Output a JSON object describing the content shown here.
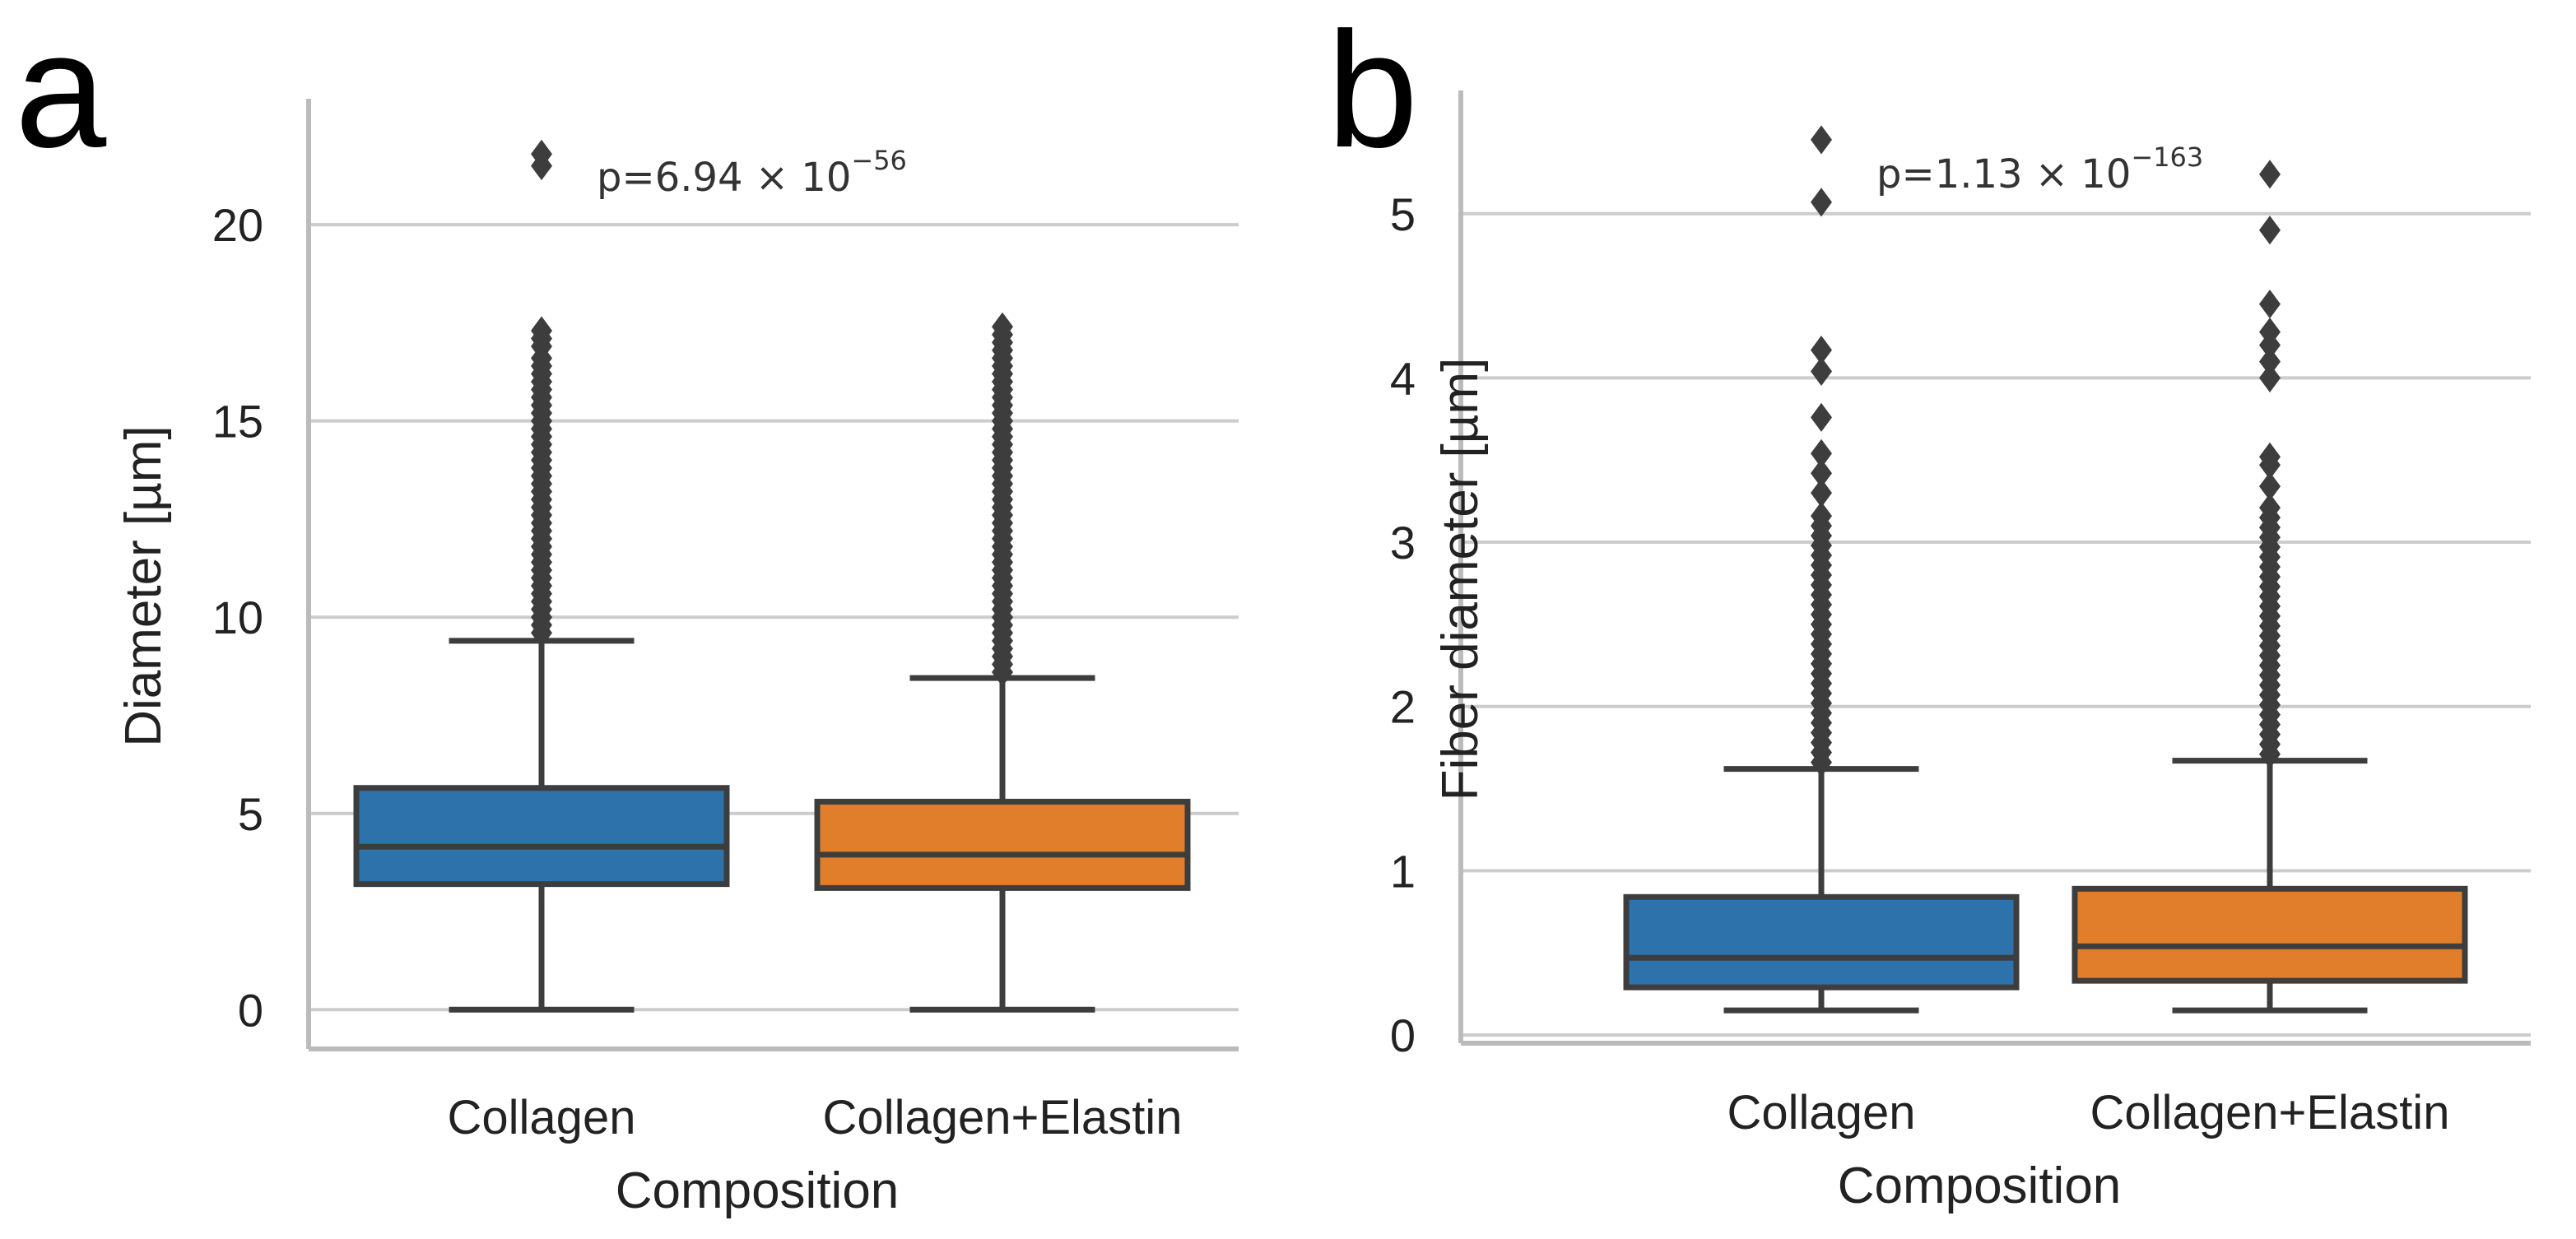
{
  "colors": {
    "collagen": "#2E72AC",
    "collagen_elastin": "#E07E2B",
    "line": "#3d3d3d",
    "grid": "#cccccc",
    "axis": "#bbbbbb"
  },
  "chart_data": [
    {
      "type": "box",
      "panel_label": "a",
      "xlabel": "Composition",
      "ylabel": "Diameter [µm]",
      "ylim": [
        -1,
        23
      ],
      "yticks": [
        0,
        5,
        10,
        15,
        20
      ],
      "ytick_labels": [
        "0",
        "5",
        "10",
        "15",
        "20"
      ],
      "grid": true,
      "annotation": {
        "prefix": "p=6.94",
        "times": " × 10",
        "exponent": "−56"
      },
      "categories": [
        "Collagen",
        "Collagen+Elastin"
      ],
      "boxes": [
        {
          "category": "Collagen",
          "whislo": 0,
          "q1": 3.2,
          "median": 4.15,
          "q3": 5.65,
          "whishi": 9.4,
          "outliers": [
            9.6,
            9.8,
            10.0,
            10.2,
            10.4,
            10.6,
            10.8,
            11.0,
            11.2,
            11.4,
            11.6,
            11.8,
            12.0,
            12.2,
            12.4,
            12.6,
            12.8,
            13.0,
            13.2,
            13.4,
            13.6,
            13.8,
            14.0,
            14.2,
            14.4,
            14.6,
            14.8,
            15.0,
            15.2,
            15.4,
            15.6,
            15.8,
            16.0,
            16.2,
            16.4,
            16.6,
            16.9,
            17.1,
            17.3,
            21.5,
            21.8
          ]
        },
        {
          "category": "Collagen+Elastin",
          "whislo": 0,
          "q1": 3.1,
          "median": 3.95,
          "q3": 5.3,
          "whishi": 8.45,
          "outliers": [
            8.6,
            8.8,
            9.0,
            9.2,
            9.4,
            9.6,
            9.8,
            10.0,
            10.2,
            10.4,
            10.6,
            10.8,
            11.0,
            11.2,
            11.4,
            11.6,
            11.8,
            12.0,
            12.2,
            12.4,
            12.6,
            12.8,
            13.0,
            13.2,
            13.4,
            13.6,
            13.8,
            14.0,
            14.2,
            14.4,
            14.6,
            14.8,
            15.0,
            15.2,
            15.4,
            15.6,
            15.8,
            16.0,
            16.2,
            16.4,
            16.6,
            16.8,
            17.0,
            17.2,
            17.4
          ]
        }
      ]
    },
    {
      "type": "box",
      "panel_label": "b",
      "xlabel": "Composition",
      "ylabel": "Fiber diameter [µm]",
      "ylim": [
        -0.05,
        5.7
      ],
      "yticks": [
        0,
        1,
        2,
        3,
        4,
        5
      ],
      "ytick_labels": [
        "0",
        "1",
        "2",
        "3",
        "4",
        "5"
      ],
      "grid": true,
      "annotation": {
        "prefix": "p=1.13",
        "times": " × 10",
        "exponent": "−163"
      },
      "categories": [
        "Collagen",
        "Collagen+Elastin"
      ],
      "boxes": [
        {
          "category": "Collagen",
          "whislo": 0.15,
          "q1": 0.29,
          "median": 0.47,
          "q3": 0.84,
          "whishi": 1.62,
          "outliers": [
            1.66,
            1.72,
            1.78,
            1.84,
            1.9,
            1.96,
            2.02,
            2.08,
            2.14,
            2.2,
            2.26,
            2.32,
            2.38,
            2.44,
            2.5,
            2.56,
            2.62,
            2.68,
            2.74,
            2.8,
            2.86,
            2.92,
            2.98,
            3.04,
            3.1,
            3.16,
            3.3,
            3.42,
            3.54,
            3.76,
            4.04,
            4.17,
            5.07,
            5.45
          ]
        },
        {
          "category": "Collagen+Elastin",
          "whislo": 0.15,
          "q1": 0.33,
          "median": 0.54,
          "q3": 0.89,
          "whishi": 1.67,
          "outliers": [
            1.71,
            1.77,
            1.83,
            1.89,
            1.95,
            2.01,
            2.07,
            2.13,
            2.19,
            2.25,
            2.31,
            2.37,
            2.43,
            2.49,
            2.55,
            2.61,
            2.67,
            2.73,
            2.79,
            2.85,
            2.91,
            2.97,
            3.03,
            3.09,
            3.15,
            3.21,
            3.34,
            3.47,
            3.52,
            4.0,
            4.1,
            4.2,
            4.28,
            4.45,
            4.9,
            5.24
          ]
        }
      ]
    }
  ]
}
